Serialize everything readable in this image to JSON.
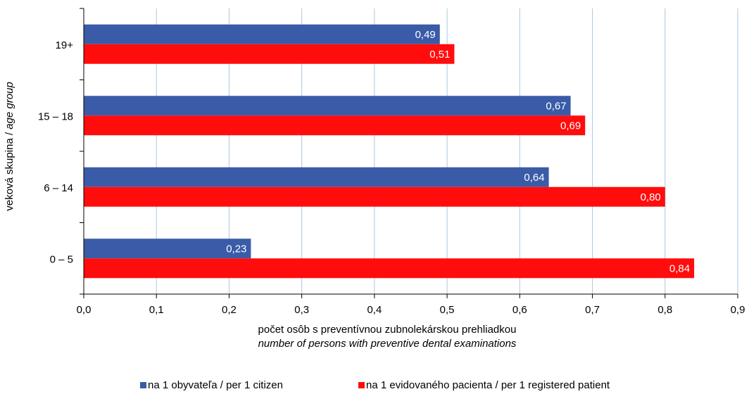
{
  "chart_data": {
    "type": "bar",
    "orientation": "horizontal",
    "categories": [
      "0 – 5",
      "6 – 14",
      "15 – 18",
      "19+"
    ],
    "series": [
      {
        "name": "na 1 obyvateľa / per 1 citizen",
        "color": "#3a5ba8",
        "values": [
          0.23,
          0.64,
          0.67,
          0.49
        ],
        "labels": [
          "0,23",
          "0,64",
          "0,67",
          "0,49"
        ]
      },
      {
        "name": "na 1 evidovaného pacienta / per 1 registered patient",
        "color": "#ff0d0d",
        "values": [
          0.84,
          0.8,
          0.69,
          0.51
        ],
        "labels": [
          "0,84",
          "0,80",
          "0,69",
          "0,51"
        ]
      }
    ],
    "xlim": [
      0,
      0.9
    ],
    "xticks": [
      "0,0",
      "0,1",
      "0,2",
      "0,3",
      "0,4",
      "0,5",
      "0,6",
      "0,7",
      "0,8",
      "0,9"
    ],
    "xlabel_line1": "počet osôb s preventívnou zubnolekárskou prehliadkou",
    "xlabel_line2": "number of persons with preventive dental examinations",
    "ylabel_prefix": "veková skupina / ",
    "ylabel_italic": "age group",
    "grid": "vertical",
    "legend_position": "bottom"
  }
}
